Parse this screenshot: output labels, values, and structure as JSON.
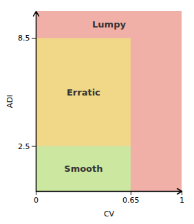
{
  "chart_data": {
    "type": "regions",
    "xlabel": "CV",
    "ylabel": "ADI",
    "xlim": [
      0,
      1
    ],
    "ylim": [
      0,
      10
    ],
    "xticks": [
      0,
      0.65,
      1
    ],
    "yticks": [
      2.5,
      8.5
    ],
    "color": "#f0b0a8",
    "grid": false,
    "regions": [
      {
        "name": "Lumpy",
        "x0": 0,
        "x1": 1,
        "y0": 8.5,
        "y1": 10,
        "color": "#f0b0a8"
      },
      {
        "name": "Erratic",
        "x0": 0,
        "x1": 0.65,
        "y0": 2.5,
        "y1": 8.5,
        "color": "#f0d888"
      },
      {
        "name": "Smooth",
        "x0": 0,
        "x1": 0.65,
        "y0": 0,
        "y1": 2.5,
        "color": "#cce8a0"
      }
    ]
  }
}
